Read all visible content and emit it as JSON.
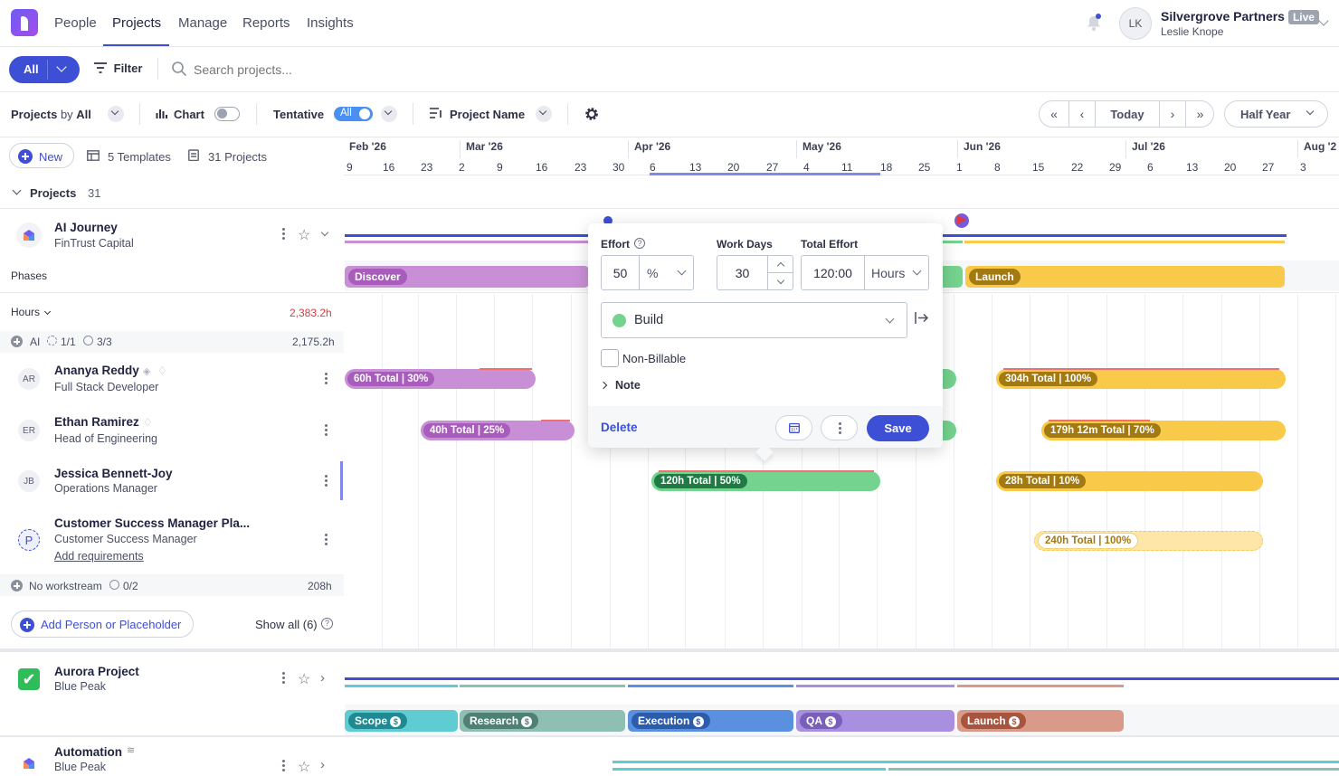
{
  "nav": {
    "items": [
      "People",
      "Projects",
      "Manage",
      "Reports",
      "Insights"
    ],
    "active": "Projects"
  },
  "account": {
    "initials": "LK",
    "org": "Silvergrove Partners",
    "badge": "Live",
    "user": "Leslie Knope"
  },
  "filterbar": {
    "all_label": "All",
    "filter_label": "Filter",
    "search_placeholder": "Search projects..."
  },
  "toolbar": {
    "projects_label": "Projects",
    "by_label": "by",
    "by_value": "All",
    "chart_label": "Chart",
    "tentative_label": "Tentative",
    "tentative_value": "All",
    "sort_label": "Project Name",
    "today_label": "Today",
    "range_label": "Half Year"
  },
  "listbar": {
    "new_label": "New",
    "templates_label": "5 Templates",
    "projects_count_label": "31 Projects"
  },
  "timeline": {
    "months": [
      "Feb '26",
      "Mar '26",
      "Apr '26",
      "May '26",
      "Jun '26",
      "Jul '26",
      "Aug '2"
    ],
    "days": [
      "9",
      "16",
      "23",
      "2",
      "9",
      "16",
      "23",
      "30",
      "6",
      "13",
      "20",
      "27",
      "4",
      "11",
      "18",
      "25",
      "1",
      "8",
      "15",
      "22",
      "29",
      "6",
      "13",
      "20",
      "27",
      "3"
    ]
  },
  "group": {
    "label": "Projects",
    "count": "31"
  },
  "project1": {
    "name": "AI Journey",
    "client": "FinTrust Capital",
    "phases_label": "Phases",
    "phases": [
      {
        "label": "Discover",
        "color": "#c98fd6"
      },
      {
        "label": "Launch",
        "color": "#f9c94a"
      }
    ],
    "hours_label": "Hours",
    "hours_total": "2,383.2h",
    "workstream": {
      "name": "AI",
      "filled": "1/1",
      "roles": "3/3",
      "hours": "2,175.2h"
    },
    "people": [
      {
        "initials": "AR",
        "name": "Ananya Reddy",
        "role": "Full Stack Developer",
        "bars": [
          "60h Total | 30%",
          "304h Total | 100%"
        ]
      },
      {
        "initials": "ER",
        "name": "Ethan Ramirez",
        "role": "Head of Engineering",
        "bars": [
          "40h Total | 25%",
          "179h 12m Total | 70%"
        ]
      },
      {
        "initials": "JB",
        "name": "Jessica Bennett-Joy",
        "role": "Operations Manager",
        "bars": [
          "120h Total | 50%",
          "28h Total | 10%"
        ]
      },
      {
        "initials": "P",
        "name": "Customer Success Manager Pla...",
        "role": "Customer Success Manager",
        "link": "Add requirements",
        "bars": [
          "240h Total | 100%"
        ]
      }
    ],
    "no_workstream": {
      "label": "No workstream",
      "roles": "0/2",
      "hours": "208h"
    },
    "add_person_label": "Add Person or Placeholder",
    "show_all_label": "Show all (6)"
  },
  "project2": {
    "name": "Aurora Project",
    "client": "Blue Peak",
    "phases": [
      {
        "label": "Scope",
        "color": "#5fcbd3"
      },
      {
        "label": "Research",
        "color": "#8fbfb3"
      },
      {
        "label": "Execution",
        "color": "#5b8fe0"
      },
      {
        "label": "QA",
        "color": "#a98fe0"
      },
      {
        "label": "Launch",
        "color": "#d99a8a"
      }
    ]
  },
  "project3": {
    "name": "Automation",
    "client": "Blue Peak"
  },
  "popup": {
    "effort_label": "Effort",
    "effort_value": "50",
    "effort_unit": "%",
    "workdays_label": "Work Days",
    "workdays_value": "30",
    "total_label": "Total Effort",
    "total_value": "120:00",
    "total_unit": "Hours",
    "phase_value": "Build",
    "phase_color": "#74d38e",
    "nonbillable_label": "Non-Billable",
    "note_label": "Note",
    "delete_label": "Delete",
    "save_label": "Save"
  },
  "colors": {
    "accent": "#3d4fd4",
    "danger": "#e0393e"
  }
}
